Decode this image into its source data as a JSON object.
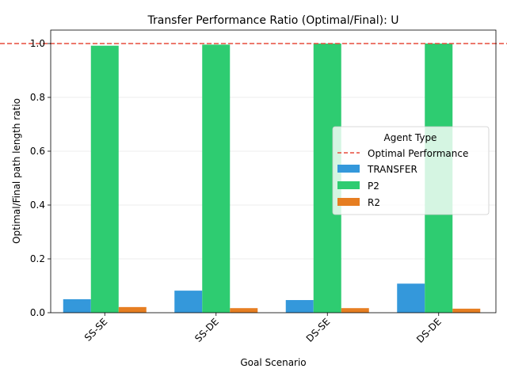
{
  "chart_data": {
    "type": "bar",
    "title": "Transfer Performance Ratio (Optimal/Final): U",
    "xlabel": "Goal Scenario",
    "ylabel": "Optimal/Final path length ratio",
    "categories": [
      "SS-SE",
      "SS-DE",
      "DS-SE",
      "DS-DE"
    ],
    "ylim": [
      0,
      1.05
    ],
    "yticks": [
      "0.0",
      "0.2",
      "0.4",
      "0.6",
      "0.8",
      "1.0"
    ],
    "grid": "y",
    "reference_line": {
      "label": "Optimal Performance",
      "value": 1.0,
      "color": "#e74c3c",
      "style": "dashed"
    },
    "series": [
      {
        "name": "TRANSFER",
        "color": "#3498db",
        "values": [
          0.05,
          0.082,
          0.047,
          0.108
        ]
      },
      {
        "name": "P2",
        "color": "#2ecc71",
        "values": [
          0.992,
          0.996,
          1.0,
          1.0
        ]
      },
      {
        "name": "R2",
        "color": "#e67e22",
        "values": [
          0.021,
          0.017,
          0.017,
          0.015
        ]
      }
    ],
    "legend": {
      "title": "Agent Type",
      "placement": "right"
    }
  }
}
